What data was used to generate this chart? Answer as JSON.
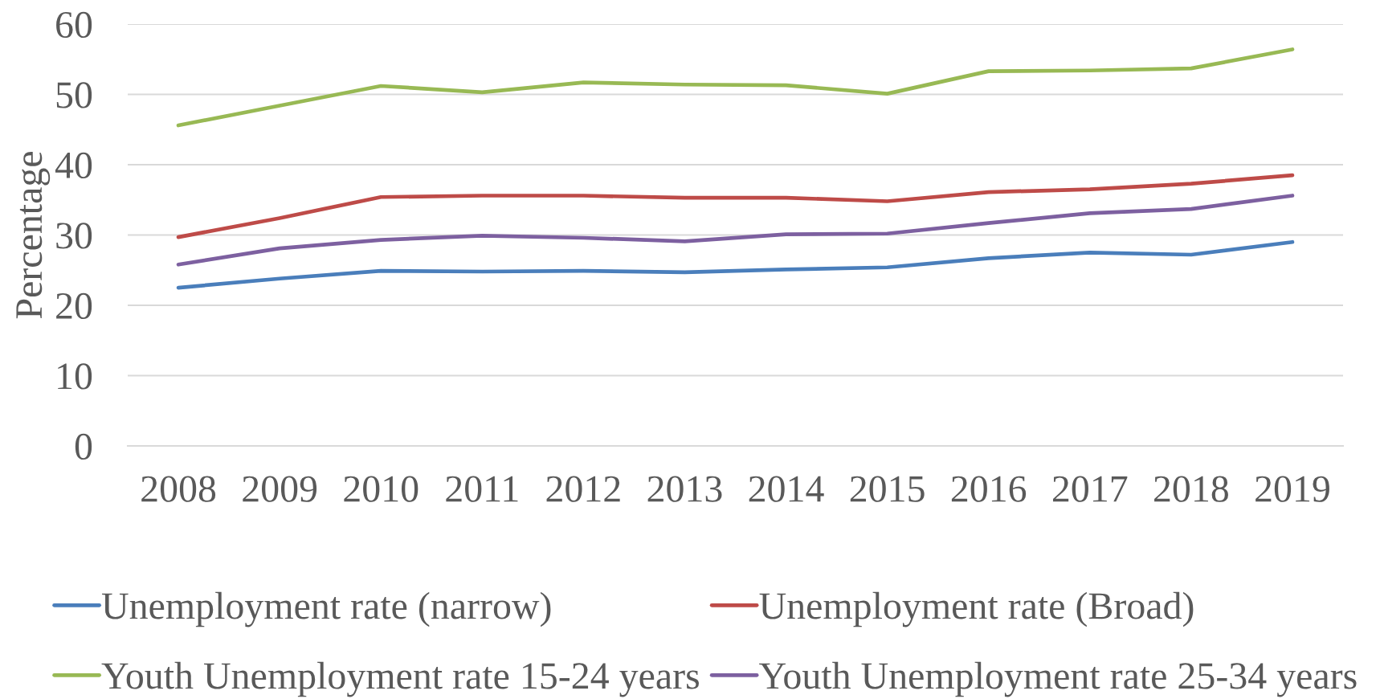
{
  "chart_data": {
    "type": "line",
    "ylabel": "Percentage",
    "categories": [
      "2008",
      "2009",
      "2010",
      "2011",
      "2012",
      "2013",
      "2014",
      "2015",
      "2016",
      "2017",
      "2018",
      "2019"
    ],
    "series": [
      {
        "name": "Unemployment rate (narrow)",
        "color": "#4a7ebb",
        "values": [
          22.5,
          23.8,
          24.9,
          24.8,
          24.9,
          24.7,
          25.1,
          25.4,
          26.7,
          27.5,
          27.2,
          29.0
        ]
      },
      {
        "name": "Unemployment rate (Broad)",
        "color": "#be4b48",
        "values": [
          29.7,
          32.4,
          35.4,
          35.6,
          35.6,
          35.3,
          35.3,
          34.8,
          36.1,
          36.5,
          37.3,
          38.5
        ]
      },
      {
        "name": "Youth Unemployment rate 15-24 years",
        "color": "#98b954",
        "values": [
          45.6,
          48.4,
          51.2,
          50.3,
          51.7,
          51.4,
          51.3,
          50.1,
          53.3,
          53.4,
          53.7,
          56.4
        ]
      },
      {
        "name": "Youth Unemployment rate 25-34 years",
        "color": "#7d60a0",
        "values": [
          25.8,
          28.1,
          29.3,
          29.9,
          29.6,
          29.1,
          30.1,
          30.2,
          31.7,
          33.1,
          33.7,
          35.6
        ]
      }
    ],
    "ylim": [
      0,
      60
    ],
    "yticks": [
      0,
      10,
      20,
      30,
      40,
      50,
      60
    ],
    "grid": "y",
    "legend": "bottom"
  }
}
